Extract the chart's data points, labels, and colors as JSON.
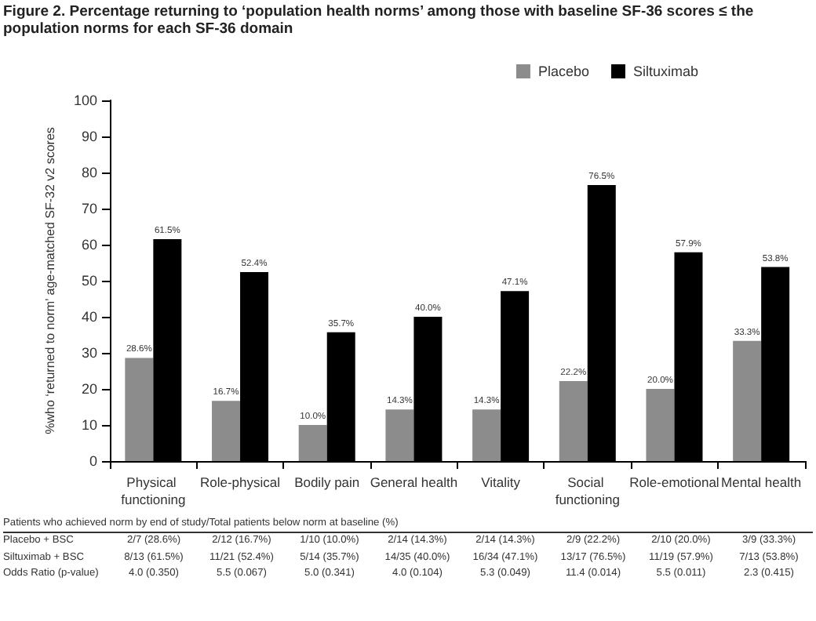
{
  "chart_data": {
    "type": "bar",
    "title": "Figure 2. Percentage returning to ‘population health norms’ among those with baseline SF-36 scores ≤ the population norms for each SF-36 domain",
    "ylabel": "%who ‘returned to norm’ age-matched SF-32 v2 scores",
    "categories": [
      "Physical functioning",
      "Role-physical",
      "Bodily pain",
      "General health",
      "Vitality",
      "Social functioning",
      "Role-emotional",
      "Mental health"
    ],
    "series": [
      {
        "name": "Placebo",
        "color": "#8c8c8c",
        "values": [
          28.6,
          16.7,
          10.0,
          14.3,
          14.3,
          22.2,
          20.0,
          33.3
        ],
        "value_labels": [
          "28.6%",
          "16.7%",
          "10.0%",
          "14.3%",
          "14.3%",
          "22.2%",
          "20.0%",
          "33.3%"
        ]
      },
      {
        "name": "Siltuximab",
        "color": "#000000",
        "values": [
          61.5,
          52.4,
          35.7,
          40.0,
          47.1,
          76.5,
          57.9,
          53.8
        ],
        "value_labels": [
          "61.5%",
          "52.4%",
          "35.7%",
          "40.0%",
          "47.1%",
          "76.5%",
          "57.9%",
          "53.8%"
        ]
      }
    ],
    "ylim": [
      0,
      100
    ],
    "yticks": [
      0,
      10,
      20,
      30,
      40,
      50,
      60,
      70,
      80,
      90,
      100
    ],
    "grid": false,
    "legend": "top right",
    "annotations": [
      "Patients who achieved norm by end of study/Total patients below norm at baseline (%)",
      "Placebo + BSC",
      "2/7 (28.6%)",
      "2/12 (16.7%)",
      "1/10 (10.0%)",
      "2/14 (14.3%)",
      "2/14 (14.3%)",
      "2/9 (22.2%)",
      "2/10 (20.0%)",
      "3/9 (33.3%)",
      "Siltuximab + BSC",
      "8/13 (61.5%)",
      "11/21 (52.4%)",
      "5/14 (35.7%)",
      "14/35 (40.0%)",
      "16/34 (47.1%)",
      "13/17 (76.5%)",
      "11/19 (57.9%)",
      "7/13 (53.8%)",
      "Odds Ratio (p-value)",
      "4.0 (0.350)",
      "5.5 (0.067)",
      "5.0 (0.341)",
      "4.0 (0.104)",
      "5.3 (0.049)",
      "11.4 (0.014)",
      "5.5 (0.011)",
      "2.3 (0.415)"
    ]
  }
}
